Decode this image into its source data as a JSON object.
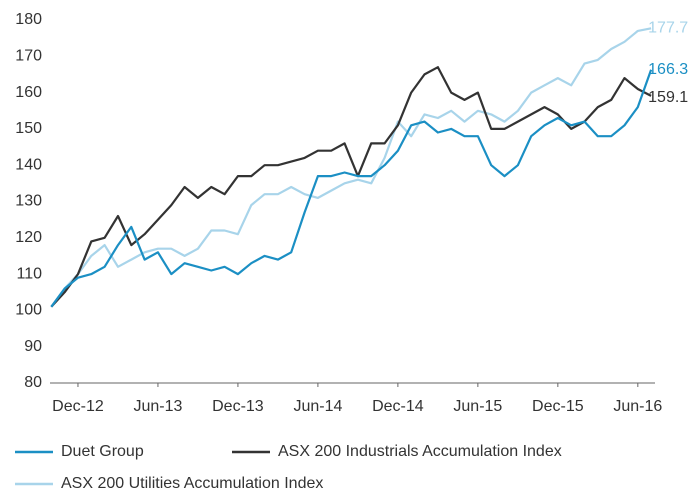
{
  "chart_data": {
    "type": "line",
    "categories": [
      null,
      null,
      "Dec-12",
      null,
      null,
      null,
      null,
      null,
      "Jun-13",
      null,
      null,
      null,
      null,
      null,
      "Dec-13",
      null,
      null,
      null,
      null,
      null,
      "Jun-14",
      null,
      null,
      null,
      null,
      null,
      "Dec-14",
      null,
      null,
      null,
      null,
      null,
      "Jun-15",
      null,
      null,
      null,
      null,
      null,
      "Dec-15",
      null,
      null,
      null,
      null,
      null,
      "Jun-16",
      null
    ],
    "series": [
      {
        "name": "Duet Group",
        "color": "#1b8fc4",
        "values": [
          101,
          106,
          109,
          110,
          112,
          118,
          123,
          114,
          116,
          110,
          113,
          112,
          111,
          112,
          110,
          113,
          115,
          114,
          116,
          127,
          137,
          137,
          138,
          137,
          137,
          140,
          144,
          151,
          152,
          149,
          150,
          148,
          148,
          140,
          137,
          140,
          148,
          151,
          153,
          151,
          152,
          148,
          148,
          151,
          156,
          166.3
        ]
      },
      {
        "name": "ASX 200 Industrials Accumulation Index",
        "color": "#333333",
        "values": [
          101,
          105,
          110,
          119,
          120,
          126,
          118,
          121,
          125,
          129,
          134,
          131,
          134,
          132,
          137,
          137,
          140,
          140,
          141,
          142,
          144,
          144,
          146,
          137,
          146,
          146,
          151,
          160,
          165,
          167,
          160,
          158,
          160,
          150,
          150,
          152,
          154,
          156,
          154,
          150,
          152,
          156,
          158,
          164,
          161,
          159.1
        ]
      },
      {
        "name": "ASX 200 Utilities Accumulation Index",
        "color": "#a8d4ea",
        "values": [
          101,
          106,
          110,
          115,
          118,
          112,
          114,
          116,
          117,
          117,
          115,
          117,
          122,
          122,
          121,
          129,
          132,
          132,
          134,
          132,
          131,
          133,
          135,
          136,
          135,
          142,
          152,
          148,
          154,
          153,
          155,
          152,
          155,
          154,
          152,
          155,
          160,
          162,
          164,
          162,
          168,
          169,
          172,
          174,
          177,
          177.7
        ]
      }
    ],
    "ylim": [
      80,
      180
    ],
    "yticks": [
      80,
      90,
      100,
      110,
      120,
      130,
      140,
      150,
      160,
      170,
      180
    ]
  }
}
